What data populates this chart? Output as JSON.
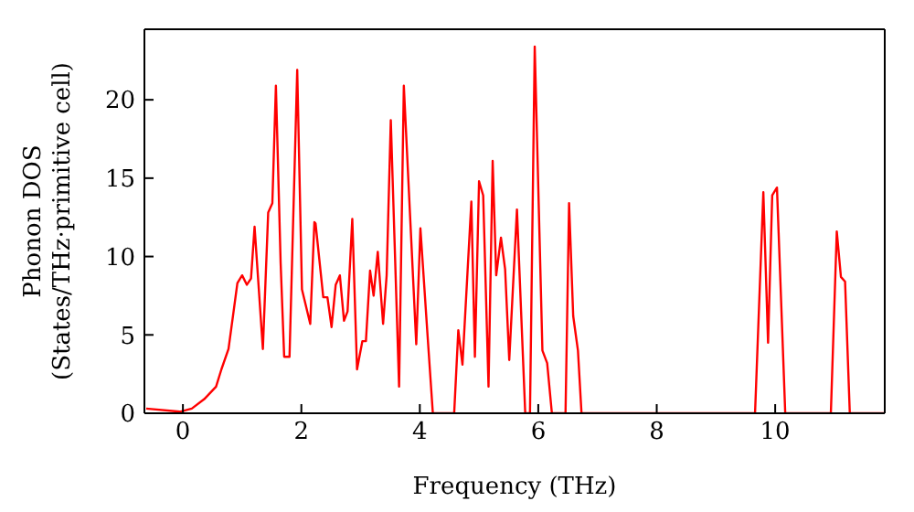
{
  "chart_data": {
    "type": "line",
    "xlabel": "Frequency (THz)",
    "ylabel": "Phonon DOS\n(States/THz·primitive cell)",
    "x": [
      -0.62,
      -0.05,
      0.15,
      0.36,
      0.56,
      0.65,
      0.77,
      0.92,
      1.0,
      1.08,
      1.15,
      1.21,
      1.35,
      1.44,
      1.51,
      1.57,
      1.65,
      1.71,
      1.8,
      1.93,
      2.01,
      2.15,
      2.22,
      2.24,
      2.37,
      2.44,
      2.51,
      2.58,
      2.65,
      2.72,
      2.78,
      2.86,
      2.94,
      3.03,
      3.09,
      3.16,
      3.22,
      3.29,
      3.38,
      3.44,
      3.51,
      3.65,
      3.73,
      3.94,
      4.01,
      4.13,
      4.22,
      4.58,
      4.65,
      4.72,
      4.87,
      4.93,
      5.0,
      5.07,
      5.16,
      5.23,
      5.29,
      5.37,
      5.44,
      5.51,
      5.64,
      5.78,
      5.86,
      5.94,
      6.07,
      6.15,
      6.23,
      6.46,
      6.52,
      6.59,
      6.67,
      6.73,
      9.66,
      9.8,
      9.88,
      9.95,
      10.03,
      10.17,
      10.94,
      11.04,
      11.11,
      11.18,
      11.26,
      11.85
    ],
    "series": [
      {
        "color": "#ff0000",
        "values": [
          0.3,
          0.1,
          0.3,
          0.9,
          1.7,
          2.8,
          4.1,
          8.3,
          8.8,
          8.2,
          8.6,
          11.9,
          4.1,
          12.8,
          13.4,
          20.9,
          9.6,
          3.6,
          3.6,
          21.9,
          7.9,
          5.7,
          12.2,
          12.1,
          7.4,
          7.4,
          5.5,
          8.2,
          8.8,
          5.9,
          6.5,
          12.4,
          2.8,
          4.6,
          4.6,
          9.1,
          7.5,
          10.3,
          5.7,
          8.8,
          18.7,
          1.7,
          20.9,
          4.4,
          11.8,
          5.0,
          0,
          0,
          5.3,
          3.1,
          13.5,
          3.6,
          14.8,
          13.9,
          1.7,
          16.1,
          8.8,
          11.2,
          9.2,
          3.4,
          13.0,
          0,
          0,
          23.4,
          4.0,
          3.2,
          0,
          0,
          13.4,
          6.2,
          4.0,
          0,
          0,
          14.1,
          4.5,
          13.9,
          14.4,
          0,
          0,
          11.6,
          8.7,
          8.4,
          0,
          0
        ]
      }
    ],
    "xlim": [
      -0.65,
      11.85
    ],
    "ylim": [
      0,
      24.5
    ],
    "xticks": [
      0,
      2,
      4,
      6,
      8,
      10
    ],
    "yticks": [
      0,
      5,
      10,
      15,
      20
    ],
    "marker": "none",
    "line_style": "solid"
  }
}
